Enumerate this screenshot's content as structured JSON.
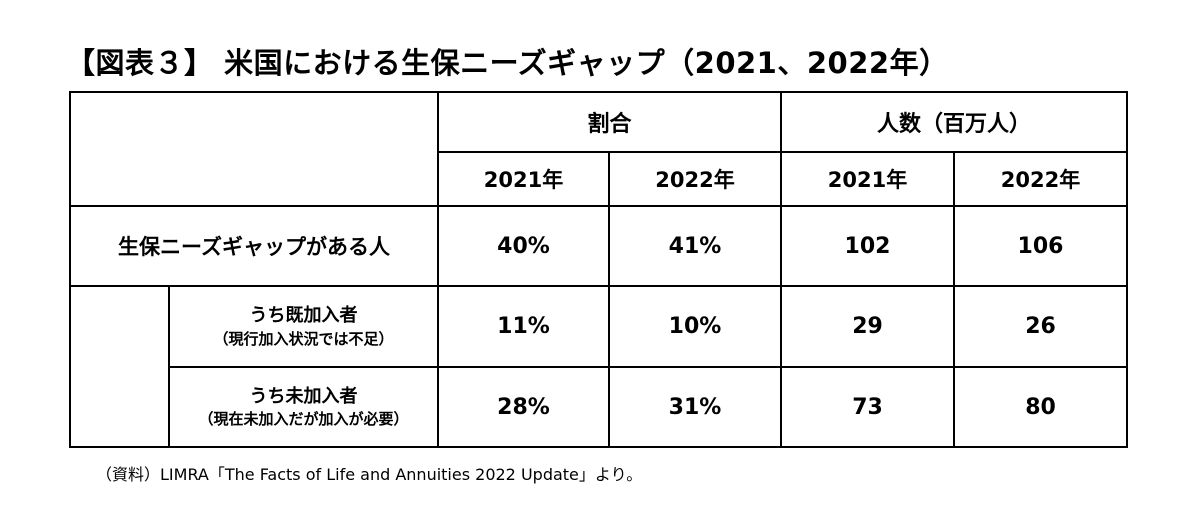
{
  "title": "【図表３】 米国における生保ニーズギャップ（2021、2022年）",
  "header": {
    "ratio_label": "割合",
    "count_label": "人数（百万人）",
    "years": [
      "2021年",
      "2022年",
      "2021年",
      "2022年"
    ]
  },
  "rows": [
    {
      "label": "生保ニーズギャップがある人",
      "note": "",
      "values": [
        "40%",
        "41%",
        "102",
        "106"
      ]
    },
    {
      "label": "うち既加入者",
      "note": "（現行加入状況では不足）",
      "values": [
        "11%",
        "10%",
        "29",
        "26"
      ]
    },
    {
      "label": "うち未加入者",
      "note": "（現在未加入だが加入が必要）",
      "values": [
        "28%",
        "31%",
        "73",
        "80"
      ]
    }
  ],
  "source": "（資料）LIMRA「The Facts of Life and Annuities 2022 Update」より。"
}
